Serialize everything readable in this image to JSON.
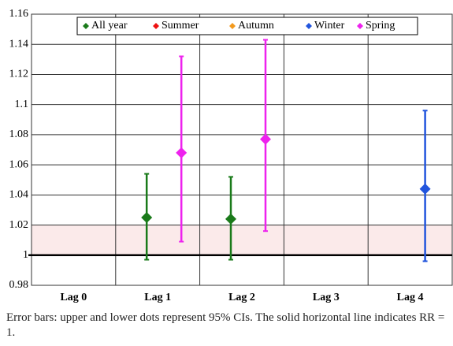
{
  "chart_data": {
    "type": "errorbar",
    "categories": [
      "Lag 0",
      "Lag 1",
      "Lag 2",
      "Lag 3",
      "Lag 4"
    ],
    "series": [
      {
        "name": "All year",
        "color": "#1a7a1a",
        "values": [
          null,
          1.025,
          1.024,
          null,
          null
        ],
        "lower": [
          null,
          0.997,
          0.997,
          null,
          null
        ],
        "upper": [
          null,
          1.054,
          1.052,
          null,
          null
        ]
      },
      {
        "name": "Summer",
        "color": "#ee1111",
        "values": [
          null,
          null,
          null,
          null,
          null
        ],
        "lower": [
          null,
          null,
          null,
          null,
          null
        ],
        "upper": [
          null,
          null,
          null,
          null,
          null
        ]
      },
      {
        "name": "Autumn",
        "color": "#f39a1e",
        "values": [
          null,
          null,
          null,
          null,
          null
        ],
        "lower": [
          null,
          null,
          null,
          null,
          null
        ],
        "upper": [
          null,
          null,
          null,
          null,
          null
        ]
      },
      {
        "name": "Winter",
        "color": "#2255dd",
        "values": [
          null,
          null,
          null,
          null,
          1.044
        ],
        "lower": [
          null,
          null,
          null,
          null,
          0.996
        ],
        "upper": [
          null,
          null,
          null,
          null,
          1.096
        ]
      },
      {
        "name": "Spring",
        "color": "#ee22ee",
        "values": [
          null,
          1.068,
          1.077,
          null,
          null
        ],
        "lower": [
          null,
          1.009,
          1.016,
          null,
          null
        ],
        "upper": [
          null,
          1.132,
          1.143,
          null,
          null
        ]
      }
    ],
    "ylim": [
      0.98,
      1.16
    ],
    "yticks": [
      0.98,
      1,
      1.02,
      1.04,
      1.06,
      1.08,
      1.1,
      1.12,
      1.14,
      1.16
    ],
    "grid": true,
    "reference_line": 1,
    "shaded_band": [
      1,
      1.02
    ],
    "legend": "top",
    "caption": "Error bars: upper and lower dots represent 95% CIs. The solid horizontal line indicates RR = 1."
  }
}
